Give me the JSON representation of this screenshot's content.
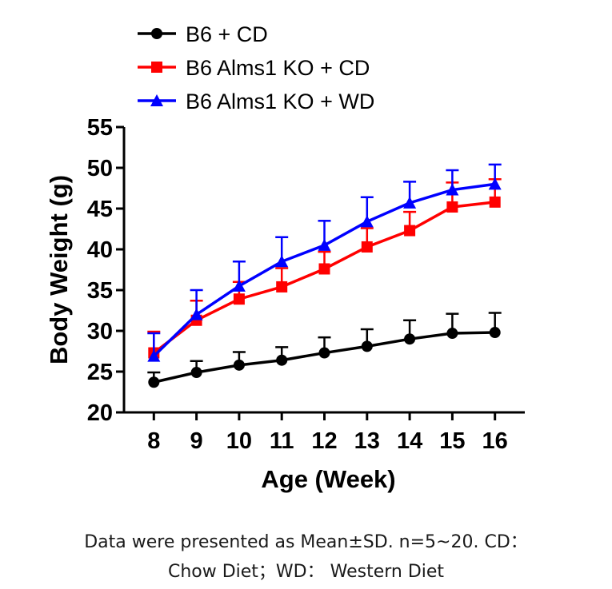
{
  "chart_data": {
    "type": "line",
    "ylabel": "Body Weight (g)",
    "xlabel": "Age (Week)",
    "x": [
      8,
      9,
      10,
      11,
      12,
      13,
      14,
      15,
      16
    ],
    "xlim": [
      7.3,
      16.7
    ],
    "ylim": [
      20,
      55
    ],
    "yticks": [
      20,
      25,
      30,
      35,
      40,
      45,
      50,
      55
    ],
    "grid": false,
    "legend_position": "top-left",
    "series": [
      {
        "name": "B6 + CD",
        "color": "#000000",
        "marker": "circle",
        "values": [
          23.7,
          24.9,
          25.8,
          26.4,
          27.3,
          28.1,
          29.0,
          29.7,
          29.8
        ],
        "sd": [
          1.2,
          1.4,
          1.6,
          1.6,
          1.9,
          2.1,
          2.3,
          2.4,
          2.4
        ]
      },
      {
        "name": "B6 Alms1 KO + CD",
        "color": "#ff0000",
        "marker": "square",
        "values": [
          27.3,
          31.3,
          33.9,
          35.4,
          37.6,
          40.3,
          42.3,
          45.2,
          45.8
        ],
        "sd": [
          2.6,
          2.4,
          2.1,
          2.3,
          2.1,
          2.3,
          2.3,
          3.0,
          2.8
        ]
      },
      {
        "name": "B6 Alms1 KO + WD",
        "color": "#0000ff",
        "marker": "triangle",
        "values": [
          26.9,
          32.0,
          35.5,
          38.5,
          40.5,
          43.4,
          45.7,
          47.3,
          48.0
        ],
        "sd": [
          2.8,
          3.0,
          3.0,
          3.0,
          3.0,
          3.0,
          2.6,
          2.4,
          2.4
        ]
      }
    ]
  },
  "caption": {
    "line1": "Data were presented as Mean±SD. n=5~20. CD：",
    "line2": "Chow Diet；WD： Western Diet"
  }
}
